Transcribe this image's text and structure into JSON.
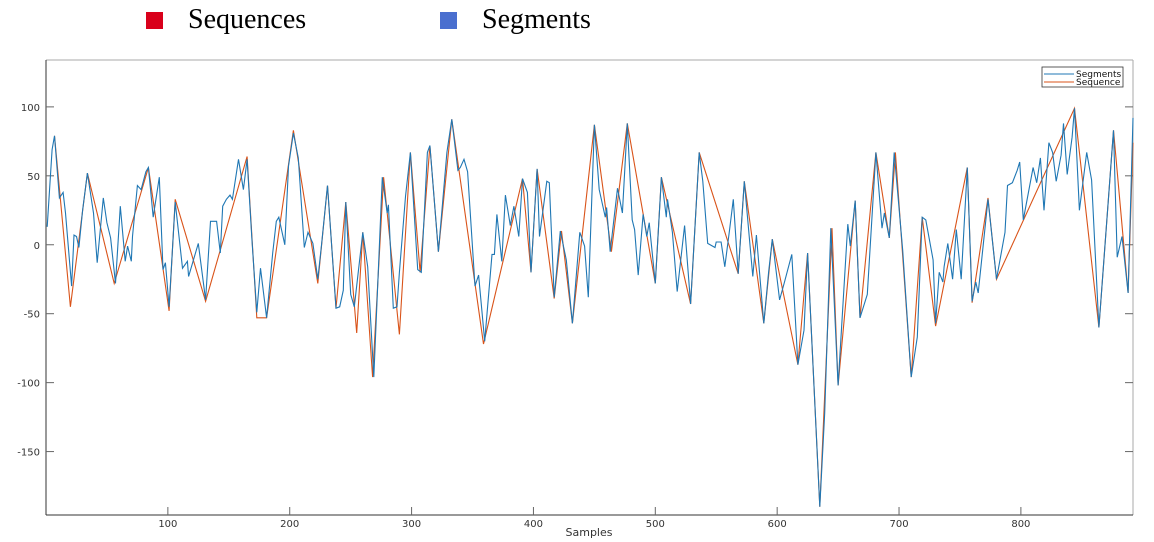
{
  "top_legend": [
    {
      "label": "Sequences",
      "color": "#d9001b"
    },
    {
      "label": "Segments",
      "color": "#4a6fcf"
    }
  ],
  "chart_data": {
    "type": "line",
    "title": "",
    "xlabel": "Samples",
    "ylabel": "",
    "xlim": [
      0,
      892
    ],
    "ylim": [
      -196,
      134
    ],
    "xticks": [
      100,
      200,
      300,
      400,
      500,
      600,
      700,
      800
    ],
    "yticks": [
      100,
      50,
      0,
      -50,
      -100,
      -150
    ],
    "grid": false,
    "legend_placement": "top-right",
    "series": [
      {
        "name": "Segments",
        "color": "#1f77b4",
        "points": [
          [
            1,
            13
          ],
          [
            5,
            69
          ],
          [
            7,
            79
          ],
          [
            11,
            34
          ],
          [
            14,
            38
          ],
          [
            16,
            23
          ],
          [
            21,
            -30
          ],
          [
            23,
            7
          ],
          [
            25,
            6
          ],
          [
            27,
            -2
          ],
          [
            30,
            25
          ],
          [
            34,
            52
          ],
          [
            39,
            23
          ],
          [
            42,
            -13
          ],
          [
            47,
            34
          ],
          [
            50,
            16
          ],
          [
            53,
            5
          ],
          [
            57,
            -28
          ],
          [
            61,
            28
          ],
          [
            65,
            -12
          ],
          [
            67,
            -1
          ],
          [
            70,
            -12
          ],
          [
            71,
            6
          ],
          [
            75,
            43
          ],
          [
            78,
            40
          ],
          [
            82,
            53
          ],
          [
            84,
            56
          ],
          [
            88,
            20
          ],
          [
            93,
            49
          ],
          [
            96,
            -18
          ],
          [
            98,
            -13
          ],
          [
            101,
            -45
          ],
          [
            106,
            31
          ],
          [
            112,
            -17
          ],
          [
            116,
            -12
          ],
          [
            117,
            -23
          ],
          [
            125,
            1
          ],
          [
            131,
            -40
          ],
          [
            135,
            17
          ],
          [
            140,
            17
          ],
          [
            143,
            -6
          ],
          [
            145,
            28
          ],
          [
            148,
            33
          ],
          [
            151,
            36
          ],
          [
            153,
            33
          ],
          [
            158,
            62
          ],
          [
            162,
            40
          ],
          [
            165,
            62
          ],
          [
            169,
            4
          ],
          [
            173,
            -49
          ],
          [
            176,
            -17
          ],
          [
            181,
            -53
          ],
          [
            186,
            -6
          ],
          [
            189,
            17
          ],
          [
            191,
            20
          ],
          [
            196,
            0
          ],
          [
            199,
            57
          ],
          [
            203,
            81
          ],
          [
            207,
            63
          ],
          [
            212,
            -2
          ],
          [
            215,
            9
          ],
          [
            219,
            1
          ],
          [
            223,
            -25
          ],
          [
            226,
            -1
          ],
          [
            231,
            43
          ],
          [
            238,
            -46
          ],
          [
            241,
            -45
          ],
          [
            244,
            -33
          ],
          [
            246,
            31
          ],
          [
            250,
            -36
          ],
          [
            253,
            -45
          ],
          [
            260,
            9
          ],
          [
            264,
            -16
          ],
          [
            269,
            -96
          ],
          [
            276,
            49
          ],
          [
            280,
            23
          ],
          [
            281,
            29
          ],
          [
            285,
            -46
          ],
          [
            288,
            -45
          ],
          [
            290,
            -20
          ],
          [
            295,
            35
          ],
          [
            299,
            67
          ],
          [
            305,
            -18
          ],
          [
            308,
            -20
          ],
          [
            313,
            67
          ],
          [
            315,
            72
          ],
          [
            322,
            -5
          ],
          [
            329,
            67
          ],
          [
            333,
            91
          ],
          [
            338,
            54
          ],
          [
            340,
            56
          ],
          [
            343,
            62
          ],
          [
            346,
            53
          ],
          [
            352,
            -30
          ],
          [
            355,
            -22
          ],
          [
            360,
            -70
          ],
          [
            366,
            -7
          ],
          [
            368,
            -7
          ],
          [
            370,
            22
          ],
          [
            374,
            -12
          ],
          [
            377,
            36
          ],
          [
            381,
            14
          ],
          [
            384,
            28
          ],
          [
            388,
            6
          ],
          [
            391,
            48
          ],
          [
            395,
            38
          ],
          [
            398,
            -20
          ],
          [
            403,
            55
          ],
          [
            405,
            6
          ],
          [
            411,
            46
          ],
          [
            413,
            45
          ],
          [
            417,
            -38
          ],
          [
            422,
            10
          ],
          [
            427,
            -11
          ],
          [
            432,
            -57
          ],
          [
            438,
            9
          ],
          [
            442,
            -1
          ],
          [
            445,
            -38
          ],
          [
            450,
            87
          ],
          [
            454,
            40
          ],
          [
            459,
            20
          ],
          [
            460,
            27
          ],
          [
            463,
            -5
          ],
          [
            469,
            41
          ],
          [
            473,
            23
          ],
          [
            477,
            88
          ],
          [
            481,
            18
          ],
          [
            483,
            11
          ],
          [
            486,
            -22
          ],
          [
            490,
            22
          ],
          [
            493,
            6
          ],
          [
            495,
            16
          ],
          [
            500,
            -28
          ],
          [
            505,
            49
          ],
          [
            509,
            20
          ],
          [
            510,
            33
          ],
          [
            514,
            9
          ],
          [
            518,
            -34
          ],
          [
            524,
            14
          ],
          [
            529,
            -43
          ],
          [
            536,
            67
          ],
          [
            539,
            46
          ],
          [
            543,
            1
          ],
          [
            549,
            -2
          ],
          [
            550,
            2
          ],
          [
            554,
            2
          ],
          [
            557,
            -16
          ],
          [
            561,
            11
          ],
          [
            564,
            33
          ],
          [
            568,
            -21
          ],
          [
            573,
            46
          ],
          [
            580,
            -23
          ],
          [
            583,
            7
          ],
          [
            589,
            -57
          ],
          [
            593,
            -20
          ],
          [
            596,
            4
          ],
          [
            602,
            -40
          ],
          [
            606,
            -27
          ],
          [
            612,
            -7
          ],
          [
            617,
            -87
          ],
          [
            622,
            -62
          ],
          [
            625,
            -6
          ],
          [
            635,
            -190
          ],
          [
            639,
            -122
          ],
          [
            644,
            12
          ],
          [
            650,
            -102
          ],
          [
            658,
            15
          ],
          [
            660,
            -1
          ],
          [
            664,
            32
          ],
          [
            668,
            -53
          ],
          [
            674,
            -36
          ],
          [
            681,
            67
          ],
          [
            686,
            12
          ],
          [
            688,
            23
          ],
          [
            692,
            5
          ],
          [
            696,
            67
          ],
          [
            703,
            -4
          ],
          [
            710,
            -96
          ],
          [
            715,
            -67
          ],
          [
            719,
            20
          ],
          [
            722,
            18
          ],
          [
            728,
            -11
          ],
          [
            730,
            -57
          ],
          [
            733,
            -20
          ],
          [
            736,
            -27
          ],
          [
            737,
            -16
          ],
          [
            740,
            1
          ],
          [
            744,
            -25
          ],
          [
            747,
            11
          ],
          [
            751,
            -25
          ],
          [
            756,
            56
          ],
          [
            760,
            -41
          ],
          [
            763,
            -27
          ],
          [
            765,
            -35
          ],
          [
            773,
            33
          ],
          [
            780,
            -25
          ],
          [
            787,
            9
          ],
          [
            789,
            43
          ],
          [
            793,
            45
          ],
          [
            797,
            54
          ],
          [
            799,
            60
          ],
          [
            802,
            18
          ],
          [
            810,
            56
          ],
          [
            813,
            45
          ],
          [
            816,
            63
          ],
          [
            819,
            25
          ],
          [
            823,
            74
          ],
          [
            826,
            67
          ],
          [
            829,
            46
          ],
          [
            833,
            65
          ],
          [
            835,
            88
          ],
          [
            838,
            51
          ],
          [
            842,
            78
          ],
          [
            844,
            99
          ],
          [
            848,
            25
          ],
          [
            854,
            67
          ],
          [
            858,
            47
          ],
          [
            864,
            -60
          ],
          [
            876,
            83
          ],
          [
            879,
            -9
          ],
          [
            883,
            6
          ],
          [
            888,
            -35
          ],
          [
            892,
            92
          ]
        ]
      },
      {
        "name": "Sequence",
        "color": "#d95319",
        "points": [
          [
            7,
            79
          ],
          [
            20,
            -45
          ],
          [
            34,
            52
          ],
          [
            56,
            -28
          ],
          [
            84,
            56
          ],
          [
            101,
            -48
          ],
          [
            106,
            33
          ],
          [
            131,
            -41
          ],
          [
            165,
            64
          ],
          [
            173,
            -53
          ],
          [
            181,
            -53
          ],
          [
            203,
            83
          ],
          [
            223,
            -28
          ],
          [
            231,
            43
          ],
          [
            238,
            -46
          ],
          [
            246,
            31
          ],
          [
            255,
            -64
          ],
          [
            260,
            9
          ],
          [
            268,
            -96
          ],
          [
            277,
            49
          ],
          [
            290,
            -65
          ],
          [
            299,
            67
          ],
          [
            307,
            -20
          ],
          [
            315,
            72
          ],
          [
            322,
            -5
          ],
          [
            333,
            91
          ],
          [
            359,
            -72
          ],
          [
            391,
            48
          ],
          [
            398,
            -20
          ],
          [
            403,
            55
          ],
          [
            417,
            -39
          ],
          [
            423,
            10
          ],
          [
            432,
            -57
          ],
          [
            450,
            87
          ],
          [
            464,
            -5
          ],
          [
            477,
            88
          ],
          [
            500,
            -28
          ],
          [
            505,
            49
          ],
          [
            529,
            -43
          ],
          [
            536,
            67
          ],
          [
            568,
            -21
          ],
          [
            573,
            46
          ],
          [
            589,
            -57
          ],
          [
            596,
            4
          ],
          [
            617,
            -87
          ],
          [
            625,
            -6
          ],
          [
            635,
            -190
          ],
          [
            645,
            12
          ],
          [
            650,
            -102
          ],
          [
            664,
            32
          ],
          [
            668,
            -53
          ],
          [
            681,
            67
          ],
          [
            692,
            5
          ],
          [
            697,
            67
          ],
          [
            710,
            -96
          ],
          [
            719,
            20
          ],
          [
            730,
            -59
          ],
          [
            756,
            56
          ],
          [
            760,
            -42
          ],
          [
            773,
            34
          ],
          [
            780,
            -25
          ],
          [
            844,
            99
          ],
          [
            864,
            -60
          ],
          [
            876,
            83
          ],
          [
            888,
            -35
          ],
          [
            892,
            74
          ]
        ]
      }
    ]
  }
}
